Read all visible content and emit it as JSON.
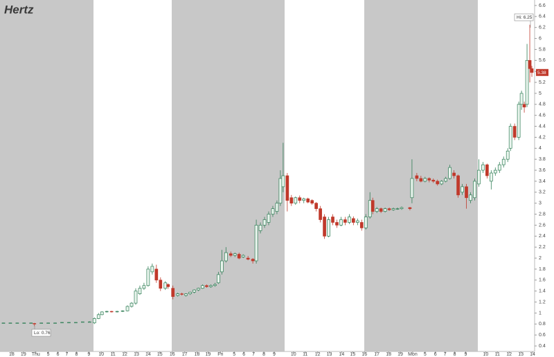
{
  "chart_data": {
    "type": "candlestick",
    "title": "Hertz",
    "x": [
      0.5,
      1.5,
      2.5,
      3.5,
      4.5,
      5.0,
      6.0,
      7.0,
      8.0,
      9.0,
      10.0,
      11.0,
      12.0,
      13.0,
      13.7,
      14.3,
      14.8,
      15.5,
      16.2,
      17.0,
      17.8,
      18.5,
      19.1,
      19.7,
      20.3,
      20.9,
      21.5,
      22.1,
      22.7,
      23.3,
      24.0,
      24.4,
      25.1,
      25.8,
      26.4,
      27.0,
      27.6,
      28.2,
      28.8,
      29.4,
      30.0,
      30.6,
      31.2,
      31.7,
      32.2,
      32.8,
      33.5,
      34.1,
      34.7,
      35.3,
      36.0,
      36.7,
      37.2,
      37.8,
      38.4,
      39.0,
      39.6,
      40.2,
      40.7,
      41.1,
      41.7,
      42.3,
      42.9,
      43.5,
      44.1,
      44.7,
      45.3,
      45.9,
      46.5,
      47.1,
      47.7,
      48.3,
      48.9,
      49.5,
      50.1,
      50.7,
      51.3,
      51.9,
      52.5,
      53.1,
      53.7,
      54.1,
      54.7,
      55.3,
      55.9,
      56.5,
      57.1,
      57.7,
      58.3,
      59.5,
      59.8,
      60.5,
      61.1,
      61.7,
      62.3,
      62.9,
      63.5,
      64.1,
      64.7,
      65.3,
      65.9,
      66.5,
      67.1,
      67.7,
      68.3,
      68.9,
      69.5,
      70.1,
      70.7,
      71.3,
      71.9,
      72.5,
      73.1,
      73.7,
      74.1,
      74.7,
      75.3,
      75.7,
      76.1,
      76.5,
      76.9,
      77.2
    ],
    "open": [
      0.82,
      0.82,
      0.82,
      0.82,
      0.82,
      0.81,
      0.82,
      0.82,
      0.82,
      0.83,
      0.83,
      0.83,
      0.84,
      0.84,
      0.82,
      0.9,
      0.97,
      1.02,
      1.03,
      1.02,
      1.03,
      1.04,
      1.12,
      1.18,
      1.35,
      1.45,
      1.5,
      1.75,
      1.8,
      1.6,
      1.45,
      1.52,
      1.45,
      1.32,
      1.35,
      1.32,
      1.35,
      1.38,
      1.42,
      1.45,
      1.5,
      1.48,
      1.5,
      1.55,
      1.75,
      1.95,
      2.08,
      2.05,
      2.07,
      2.02,
      2.0,
      1.98,
      1.95,
      2.5,
      2.6,
      2.65,
      2.8,
      2.85,
      3.0,
      3.3,
      3.5,
      3.1,
      3.0,
      3.1,
      3.05,
      3.08,
      3.05,
      3.0,
      2.9,
      2.75,
      2.4,
      2.75,
      2.65,
      2.6,
      2.7,
      2.65,
      2.72,
      2.65,
      2.65,
      2.55,
      2.75,
      3.05,
      2.85,
      2.9,
      2.85,
      2.9,
      2.88,
      2.9,
      2.9,
      2.92,
      3.1,
      3.5,
      3.45,
      3.4,
      3.45,
      3.42,
      3.4,
      3.35,
      3.4,
      3.45,
      3.55,
      3.5,
      3.2,
      3.3,
      3.05,
      3.1,
      3.35,
      3.6,
      3.7,
      3.4,
      3.55,
      3.6,
      3.7,
      3.8,
      4.0,
      4.4,
      4.2,
      4.8,
      4.8,
      4.8,
      5.6,
      5.45
    ],
    "high": [
      0.82,
      0.82,
      0.82,
      0.82,
      0.82,
      0.82,
      0.82,
      0.82,
      0.82,
      0.83,
      0.83,
      0.83,
      0.84,
      0.85,
      0.92,
      1.0,
      1.03,
      1.04,
      1.04,
      1.04,
      1.05,
      1.14,
      1.2,
      1.45,
      1.5,
      1.55,
      1.85,
      1.9,
      1.88,
      1.65,
      1.58,
      1.54,
      1.5,
      1.37,
      1.37,
      1.36,
      1.39,
      1.43,
      1.46,
      1.52,
      1.52,
      1.52,
      1.55,
      1.75,
      2.15,
      2.2,
      2.12,
      2.1,
      2.1,
      2.07,
      2.04,
      2.0,
      2.7,
      2.65,
      2.75,
      2.85,
      2.95,
      3.05,
      3.6,
      4.1,
      3.55,
      3.15,
      3.12,
      3.14,
      3.1,
      3.1,
      3.07,
      3.02,
      2.95,
      2.8,
      2.75,
      2.8,
      2.7,
      2.75,
      2.75,
      2.8,
      2.76,
      2.72,
      2.7,
      2.8,
      3.2,
      3.1,
      2.93,
      2.92,
      2.92,
      2.92,
      2.92,
      2.92,
      2.94,
      2.93,
      3.8,
      3.55,
      3.5,
      3.48,
      3.47,
      3.45,
      3.43,
      3.42,
      3.48,
      3.7,
      3.6,
      3.52,
      3.35,
      3.35,
      3.2,
      3.45,
      3.8,
      3.75,
      3.72,
      3.6,
      3.65,
      3.75,
      3.85,
      4.0,
      4.45,
      4.45,
      4.85,
      5.05,
      4.85,
      5.9,
      6.25,
      5.5
    ],
    "low": [
      0.82,
      0.82,
      0.82,
      0.82,
      0.82,
      0.76,
      0.82,
      0.82,
      0.82,
      0.83,
      0.83,
      0.83,
      0.84,
      0.83,
      0.8,
      0.89,
      0.96,
      1.01,
      1.01,
      1.01,
      1.02,
      1.03,
      1.1,
      1.15,
      1.33,
      1.42,
      1.48,
      1.7,
      1.55,
      1.4,
      1.42,
      1.44,
      1.25,
      1.3,
      1.32,
      1.3,
      1.33,
      1.36,
      1.4,
      1.44,
      1.46,
      1.46,
      1.48,
      1.53,
      1.7,
      1.92,
      2.02,
      2.02,
      1.98,
      2.0,
      1.96,
      1.9,
      1.9,
      2.45,
      2.55,
      2.6,
      2.75,
      2.8,
      2.95,
      3.2,
      2.85,
      2.95,
      2.97,
      3.0,
      3.0,
      3.0,
      2.97,
      2.85,
      2.65,
      2.35,
      2.38,
      2.6,
      2.55,
      2.58,
      2.6,
      2.62,
      2.6,
      2.6,
      2.5,
      2.52,
      2.72,
      2.8,
      2.82,
      2.82,
      2.83,
      2.86,
      2.86,
      2.88,
      2.88,
      2.87,
      3.0,
      3.4,
      3.38,
      3.38,
      3.38,
      3.37,
      3.32,
      3.33,
      3.38,
      3.43,
      3.45,
      3.1,
      3.15,
      2.9,
      3.0,
      3.05,
      3.3,
      3.55,
      3.45,
      3.25,
      3.5,
      3.55,
      3.65,
      3.75,
      3.95,
      4.15,
      4.15,
      4.7,
      4.65,
      4.75,
      5.2,
      5.3
    ],
    "close": [
      0.82,
      0.82,
      0.82,
      0.82,
      0.82,
      0.8,
      0.82,
      0.82,
      0.82,
      0.83,
      0.83,
      0.83,
      0.84,
      0.84,
      0.9,
      0.97,
      1.02,
      1.03,
      1.02,
      1.03,
      1.04,
      1.12,
      1.18,
      1.4,
      1.45,
      1.5,
      1.8,
      1.85,
      1.6,
      1.45,
      1.55,
      1.48,
      1.3,
      1.35,
      1.34,
      1.35,
      1.38,
      1.42,
      1.45,
      1.5,
      1.48,
      1.5,
      1.52,
      1.7,
      1.95,
      2.1,
      2.05,
      2.08,
      2.0,
      2.05,
      1.98,
      1.95,
      2.6,
      2.6,
      2.7,
      2.8,
      2.9,
      3.0,
      3.45,
      3.5,
      3.05,
      3.0,
      3.1,
      3.05,
      3.08,
      3.02,
      3.0,
      2.9,
      2.7,
      2.4,
      2.7,
      2.65,
      2.6,
      2.7,
      2.65,
      2.75,
      2.65,
      2.68,
      2.55,
      2.75,
      3.05,
      2.85,
      2.9,
      2.85,
      2.9,
      2.88,
      2.9,
      2.9,
      2.92,
      2.9,
      3.45,
      3.45,
      3.4,
      3.45,
      3.42,
      3.4,
      3.35,
      3.4,
      3.45,
      3.65,
      3.5,
      3.15,
      3.3,
      3.1,
      3.15,
      3.4,
      3.6,
      3.7,
      3.5,
      3.55,
      3.6,
      3.7,
      3.8,
      3.95,
      4.4,
      4.2,
      4.8,
      5.0,
      4.75,
      5.6,
      5.45,
      5.38
    ],
    "up_color": "#2f7d55",
    "down_color": "#c0392b",
    "xlim": [
      0,
      77.6
    ],
    "ylim": [
      0.3,
      6.7
    ],
    "xticks": [
      {
        "value": 1.7,
        "label": "18"
      },
      {
        "value": 3.4,
        "label": "19"
      },
      {
        "value": 5.2,
        "label": "Thu"
      },
      {
        "value": 7.0,
        "label": "5"
      },
      {
        "value": 8.4,
        "label": "6"
      },
      {
        "value": 9.7,
        "label": "7"
      },
      {
        "value": 11.1,
        "label": "8"
      },
      {
        "value": 12.9,
        "label": "9"
      },
      {
        "value": 14.7,
        "label": "10"
      },
      {
        "value": 16.4,
        "label": "11"
      },
      {
        "value": 18.1,
        "label": "12"
      },
      {
        "value": 19.8,
        "label": "13"
      },
      {
        "value": 21.5,
        "label": "14"
      },
      {
        "value": 23.2,
        "label": "15"
      },
      {
        "value": 25.0,
        "label": "16"
      },
      {
        "value": 26.8,
        "label": "17"
      },
      {
        "value": 28.6,
        "label": "18"
      },
      {
        "value": 30.2,
        "label": "19"
      },
      {
        "value": 32.0,
        "label": "Fri"
      },
      {
        "value": 34.0,
        "label": "5"
      },
      {
        "value": 35.4,
        "label": "6"
      },
      {
        "value": 36.8,
        "label": "7"
      },
      {
        "value": 38.3,
        "label": "8"
      },
      {
        "value": 39.8,
        "label": "9"
      },
      {
        "value": 42.6,
        "label": "10"
      },
      {
        "value": 44.3,
        "label": "11"
      },
      {
        "value": 46.1,
        "label": "12"
      },
      {
        "value": 47.8,
        "label": "13"
      },
      {
        "value": 49.6,
        "label": "14"
      },
      {
        "value": 51.2,
        "label": "15"
      },
      {
        "value": 52.9,
        "label": "16"
      },
      {
        "value": 54.7,
        "label": "17"
      },
      {
        "value": 56.4,
        "label": "18"
      },
      {
        "value": 58.1,
        "label": "19"
      },
      {
        "value": 59.9,
        "label": "Mon"
      },
      {
        "value": 61.7,
        "label": "5"
      },
      {
        "value": 63.2,
        "label": "6"
      },
      {
        "value": 64.6,
        "label": "7"
      },
      {
        "value": 66.0,
        "label": "8"
      },
      {
        "value": 67.6,
        "label": "9"
      },
      {
        "value": 70.5,
        "label": "10"
      },
      {
        "value": 72.2,
        "label": "11"
      },
      {
        "value": 73.9,
        "label": "12"
      },
      {
        "value": 75.6,
        "label": "13"
      },
      {
        "value": 77.3,
        "label": "14"
      }
    ],
    "yticks": [
      0.4,
      0.6,
      0.8,
      1,
      1.2,
      1.4,
      1.6,
      1.8,
      2,
      2.2,
      2.4,
      2.6,
      2.8,
      3,
      3.2,
      3.4,
      3.6,
      3.8,
      4,
      4.2,
      4.4,
      4.6,
      4.8,
      5,
      5.2,
      5.4,
      5.6,
      5.8,
      6,
      6.2,
      6.4,
      6.6
    ],
    "annotations": {
      "low": "Lo: 0.76",
      "high": "Hi: 6.25",
      "last": "5.38"
    }
  }
}
